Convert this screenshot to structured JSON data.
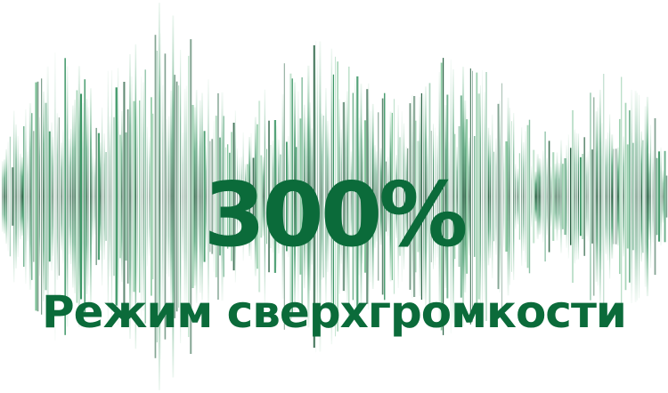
{
  "headline": {
    "value": "300%",
    "subtitle": "Режим сверхгромкости"
  },
  "colors": {
    "background": "#ffffff",
    "text": "#0b6b3a",
    "wave_dark": "#1f5a3a",
    "wave_mid": "#2f8f5b",
    "wave_light": "#6dbb8a"
  },
  "icons": {
    "wave": "audio-waveform-graphic"
  }
}
